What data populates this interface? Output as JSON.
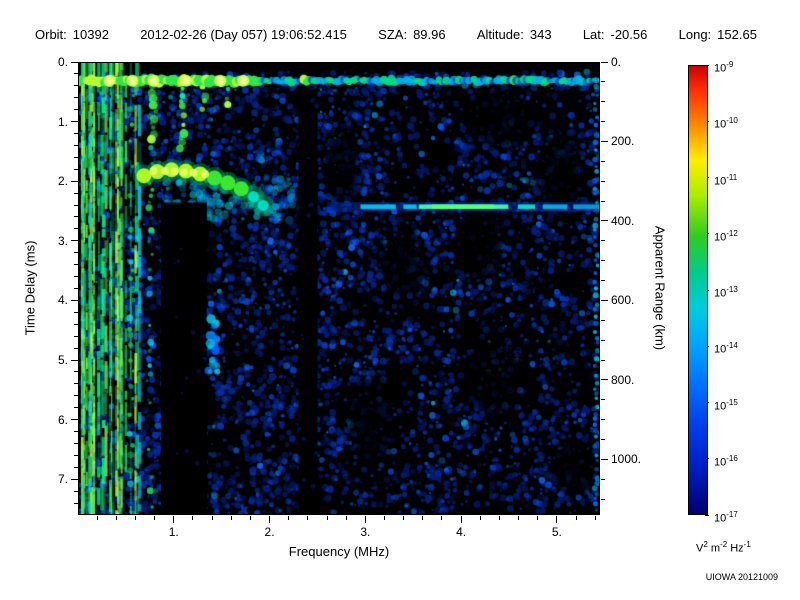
{
  "header": {
    "fields": [
      {
        "label": "Orbit:",
        "value": "10392"
      },
      {
        "label": "",
        "value": "2012-02-26 (Day 057) 19:06:52.415"
      },
      {
        "label": "SZA:",
        "value": "89.96"
      },
      {
        "label": "Altitude:",
        "value": "343"
      },
      {
        "label": "Lat:",
        "value": "-20.56"
      },
      {
        "label": "Long:",
        "value": "152.65"
      }
    ]
  },
  "credit": "UIOWA 20121009",
  "chart_data": {
    "type": "heatmap",
    "title": "",
    "x_axis": {
      "label": "Frequency (MHz)",
      "range": [
        0,
        5.45
      ],
      "ticks": [
        1,
        2,
        3,
        4,
        5
      ],
      "tick_labels": [
        "1.",
        "2.",
        "3.",
        "4.",
        "5."
      ],
      "minor_step": 0.2
    },
    "y_axis_left": {
      "label": "Time Delay (ms)",
      "range": [
        0,
        7.6
      ],
      "ticks": [
        0,
        1,
        2,
        3,
        4,
        5,
        6,
        7
      ],
      "tick_labels": [
        "0.",
        "1.",
        "2.",
        "3.",
        "4.",
        "5.",
        "6.",
        "7."
      ],
      "minor_step": 0.2
    },
    "y_axis_right": {
      "label": "Apparent Range (km)",
      "ticks_km": [
        0,
        200,
        400,
        600,
        800,
        1000
      ],
      "tick_labels": [
        "0.",
        "200.",
        "400.",
        "600.",
        "800.",
        "1000."
      ],
      "km_per_ms": 150,
      "minor_step_km": 50
    },
    "colorbar": {
      "exponents": [
        -9,
        -10,
        -11,
        -12,
        -13,
        -14,
        -15,
        -16,
        -17
      ],
      "unit_parts": [
        {
          "base": "V",
          "exp": "2"
        },
        {
          "base": "m",
          "exp": "-2"
        },
        {
          "base": "Hz",
          "exp": "-1"
        }
      ],
      "stops": [
        {
          "pos": 0,
          "color": "#cc0000"
        },
        {
          "pos": 5,
          "color": "#ff2a00"
        },
        {
          "pos": 12,
          "color": "#ff7a00"
        },
        {
          "pos": 21,
          "color": "#ffee00"
        },
        {
          "pos": 29,
          "color": "#a8ee00"
        },
        {
          "pos": 38,
          "color": "#2fcc22"
        },
        {
          "pos": 46,
          "color": "#00cc88"
        },
        {
          "pos": 54,
          "color": "#00cddd"
        },
        {
          "pos": 62,
          "color": "#00a6ff"
        },
        {
          "pos": 70,
          "color": "#0077ff"
        },
        {
          "pos": 79,
          "color": "#0044ee"
        },
        {
          "pos": 88,
          "color": "#0022cc"
        },
        {
          "pos": 100,
          "color": "#000070"
        }
      ]
    },
    "features": [
      {
        "kind": "speckle",
        "x_range": [
          0,
          5.45
        ],
        "y_range": [
          0.15,
          7.6
        ],
        "density": 0.8
      },
      {
        "kind": "dark-patch",
        "x": 4.4,
        "y": 0.95,
        "rx": 0.45,
        "ry": 0.6
      },
      {
        "kind": "dark-patch",
        "x": 2.75,
        "y": 1.7,
        "rx": 0.22,
        "ry": 0.85
      },
      {
        "kind": "dark-patch",
        "x": 3.4,
        "y": 3.4,
        "rx": 0.3,
        "ry": 0.7
      },
      {
        "kind": "dark-patch",
        "x": 4.2,
        "y": 3.1,
        "rx": 0.3,
        "ry": 0.8
      },
      {
        "kind": "dark-patch",
        "x": 5.05,
        "y": 1.9,
        "rx": 0.28,
        "ry": 0.9
      },
      {
        "kind": "dark-patch",
        "x": 3.05,
        "y": 6.0,
        "rx": 0.3,
        "ry": 0.9
      },
      {
        "kind": "dark-patch",
        "x": 4.35,
        "y": 5.3,
        "rx": 0.35,
        "ry": 0.85
      },
      {
        "kind": "dark-patch",
        "x": 5.2,
        "y": 6.8,
        "rx": 0.3,
        "ry": 0.6
      },
      {
        "kind": "broadband-stripes",
        "x_range": [
          0.02,
          0.62
        ]
      },
      {
        "kind": "dotted-vstreak",
        "x": 0.55,
        "y_range": [
          0.45,
          7.6
        ]
      },
      {
        "kind": "dotted-vstreak",
        "x": 0.75,
        "y_range": [
          0.45,
          7.6
        ]
      },
      {
        "kind": "top-vstreak",
        "x": 0.78,
        "y_end": 1.35
      },
      {
        "kind": "top-vstreak",
        "x": 1.08,
        "y_end": 1.55
      },
      {
        "kind": "top-vstreak",
        "x": 1.3,
        "y_end": 0.9
      },
      {
        "kind": "top-vstreak",
        "x": 1.55,
        "y_end": 0.8
      },
      {
        "kind": "plasma-band",
        "y": 0.3,
        "bright_until_mhz": 1.9,
        "spots_mhz": [
          0.32,
          0.56,
          0.78,
          1.12,
          1.48,
          1.72
        ]
      },
      {
        "kind": "echo-cloud",
        "x_range": [
          0.9,
          2.25
        ],
        "y_range": [
          1.95,
          2.65
        ]
      },
      {
        "kind": "echo-trace",
        "points": [
          [
            0.68,
            1.9
          ],
          [
            0.82,
            1.83
          ],
          [
            0.97,
            1.8
          ],
          [
            1.12,
            1.82
          ],
          [
            1.27,
            1.87
          ],
          [
            1.42,
            1.94
          ],
          [
            1.56,
            2.02
          ],
          [
            1.7,
            2.12
          ],
          [
            1.83,
            2.25
          ],
          [
            1.93,
            2.4
          ]
        ],
        "core_points": [
          [
            0.78,
            1.82
          ],
          [
            0.9,
            1.82
          ],
          [
            1.0,
            1.83
          ],
          [
            1.1,
            1.84
          ],
          [
            1.2,
            1.85
          ],
          [
            1.32,
            1.87
          ]
        ]
      },
      {
        "kind": "dark-column",
        "x_range": [
          0.86,
          1.34
        ],
        "y_range": [
          2.35,
          7.6
        ]
      },
      {
        "kind": "dark-column",
        "x_range": [
          2.3,
          2.5
        ],
        "y_range": [
          0.45,
          7.6
        ]
      },
      {
        "kind": "edge-blobs",
        "x": 1.4,
        "y_range": [
          3.9,
          5.2
        ]
      },
      {
        "kind": "surface-line",
        "y": 2.42,
        "halo_x": [
          2.6,
          5.45
        ],
        "segments": [
          {
            "x": [
              2.95,
              3.32
            ],
            "color": "#00c8ee"
          },
          {
            "x": [
              3.4,
              3.54
            ],
            "color": "#00c8ee"
          },
          {
            "x": [
              3.56,
              4.5
            ],
            "color": "#44ffaa"
          },
          {
            "x": [
              4.6,
              4.78
            ],
            "color": "#00e6cc"
          },
          {
            "x": [
              4.86,
              5.12
            ],
            "color": "#00b4e6"
          },
          {
            "x": [
              5.18,
              5.45
            ],
            "color": "#00a0dd"
          },
          {
            "x": [
              3.7,
              4.35
            ],
            "color": "#55ff77"
          }
        ]
      },
      {
        "kind": "edge-stripe",
        "x": 5.42,
        "y_range": [
          0.4,
          7.6
        ]
      }
    ]
  }
}
